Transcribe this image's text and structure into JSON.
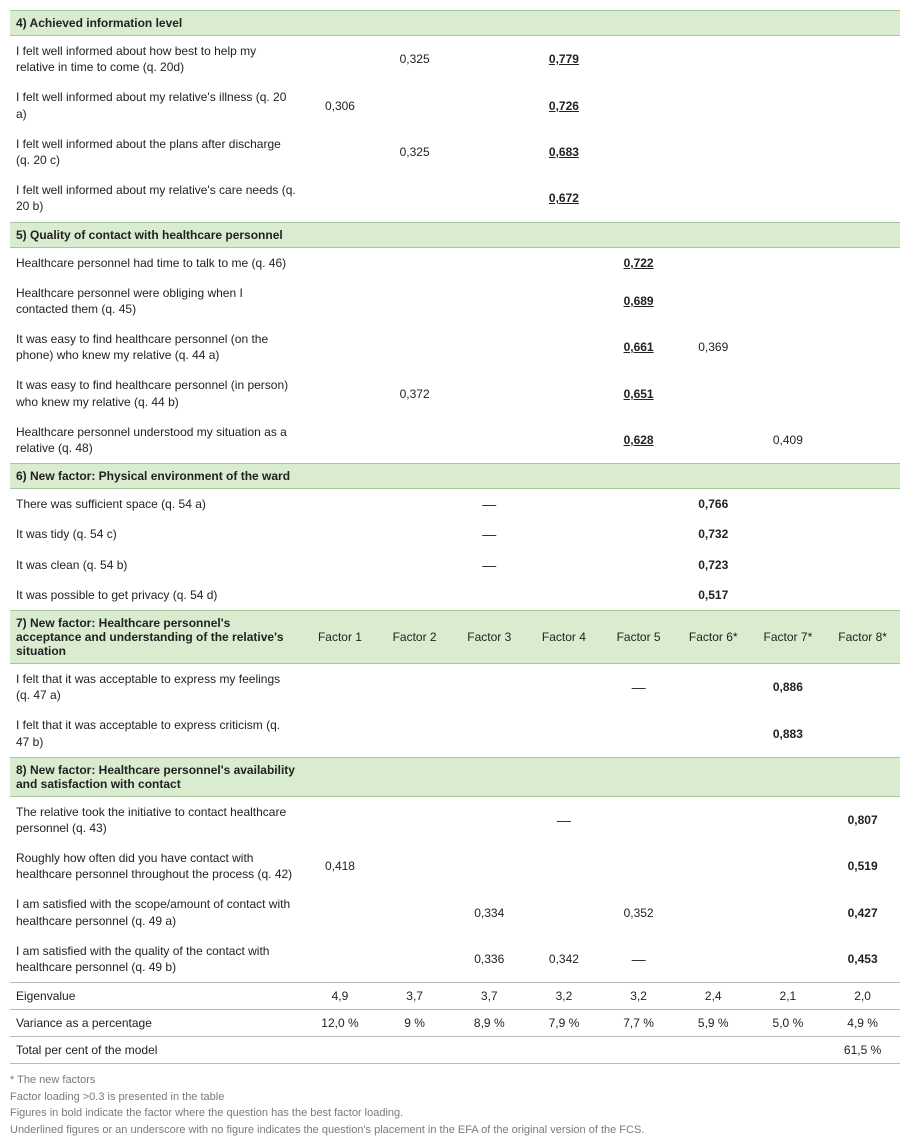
{
  "colors": {
    "section_bg": "#d9ecd0",
    "border": "#d0d0d0",
    "text": "#222222",
    "footnote": "#7a7a7a"
  },
  "factor_headers": [
    "Factor 1",
    "Factor 2",
    "Factor 3",
    "Factor 4",
    "Factor 5",
    "Factor 6*",
    "Factor 7*",
    "Factor 8*"
  ],
  "sections": {
    "s4": {
      "title": "4) Achieved information level",
      "rows": [
        {
          "label": "I felt well informed about how best to help my relative in time to come (q. 20d)",
          "f2": "0,325",
          "f4": "0,779",
          "f4_boldul": true
        },
        {
          "label": "I felt well informed about my relative's illness (q. 20 a)",
          "f1": "0,306",
          "f4": "0,726",
          "f4_boldul": true
        },
        {
          "label": "I felt well informed about the plans after discharge (q. 20 c)",
          "f2": "0,325",
          "f4": "0,683",
          "f4_boldul": true
        },
        {
          "label": "I felt well informed about my relative's care needs (q. 20 b)",
          "f4": "0,672",
          "f4_boldul": true
        }
      ]
    },
    "s5": {
      "title": "5) Quality of contact with healthcare personnel",
      "rows": [
        {
          "label": "Healthcare personnel had time to talk to me (q. 46)",
          "f5": "0,722",
          "f5_boldul": true
        },
        {
          "label": "Healthcare personnel were obliging when I contacted them (q. 45)",
          "f5": "0,689",
          "f5_boldul": true
        },
        {
          "label": "It was easy to find healthcare personnel (on the phone) who knew my relative (q. 44 a)",
          "f5": "0,661",
          "f5_boldul": true,
          "f6": "0,369"
        },
        {
          "label": "It was easy to find healthcare personnel (in person) who knew my relative (q. 44 b)",
          "f2": "0,372",
          "f5": "0,651",
          "f5_boldul": true
        },
        {
          "label": "Healthcare personnel understood my situation as a relative (q. 48)",
          "f5": "0,628",
          "f5_boldul": true,
          "f7": "0,409"
        }
      ]
    },
    "s6": {
      "title": "6) New factor: Physical environment of the ward",
      "rows": [
        {
          "label": "There was sufficient space (q. 54 a)",
          "f3": "—",
          "f6": "0,766",
          "f6_bold": true
        },
        {
          "label": "It was tidy (q. 54 c)",
          "f3": "—",
          "f6": "0,732",
          "f6_bold": true
        },
        {
          "label": "It was clean (q. 54 b)",
          "f3": "—",
          "f6": "0,723",
          "f6_bold": true
        },
        {
          "label": "It was possible to get privacy (q. 54 d)",
          "f6": "0,517",
          "f6_bold": true
        }
      ]
    },
    "s7": {
      "title": "7) New factor: Healthcare personnel's acceptance and understanding of the relative's situation",
      "show_headers": true,
      "rows": [
        {
          "label": "I felt that it was acceptable to express my feelings (q. 47 a)",
          "f5": "—",
          "f7": "0,886",
          "f7_bold": true
        },
        {
          "label": "I felt that it was acceptable to express criticism (q. 47 b)",
          "f7": "0,883",
          "f7_bold": true
        }
      ]
    },
    "s8": {
      "title": "8) New factor: Healthcare personnel's availability and satisfaction with contact",
      "rows": [
        {
          "label": "The relative took the initiative to contact healthcare personnel (q. 43)",
          "f4": "—",
          "f8": "0,807",
          "f8_bold": true
        },
        {
          "label": "Roughly how often did you have contact with healthcare personnel throughout the process (q. 42)",
          "f1": "0,418",
          "f8": "0,519",
          "f8_bold": true
        },
        {
          "label": "I am satisfied with the scope/amount of contact with healthcare personnel (q. 49 a)",
          "f3": "0,334",
          "f5": "0,352",
          "f8": "0,427",
          "f8_bold": true
        },
        {
          "label": "I am satisfied with the quality of the contact with healthcare personnel (q. 49 b)",
          "f3": "0,336",
          "f4": "0,342",
          "f5": "—",
          "f8": "0,453",
          "f8_bold": true
        }
      ]
    }
  },
  "summary": {
    "eigen": {
      "label": "Eigenvalue",
      "vals": [
        "4,9",
        "3,7",
        "3,7",
        "3,2",
        "3,2",
        "2,4",
        "2,1",
        "2,0"
      ]
    },
    "variance": {
      "label": "Variance as a percentage",
      "vals": [
        "12,0 %",
        "9 %",
        "8,9 %",
        "7,9 %",
        "7,7 %",
        "5,9 %",
        "5,0 %",
        "4,9 %"
      ]
    },
    "total": {
      "label": "Total per cent of the model",
      "val": "61,5 %"
    }
  },
  "footnotes": [
    "* The new factors",
    "Factor loading >0.3 is presented in the table",
    "Figures in bold indicate the factor where the question has the best factor loading.",
    "Underlined figures or an underscore with no figure indicates the question's placement in the EFA of the original version of the FCS."
  ]
}
